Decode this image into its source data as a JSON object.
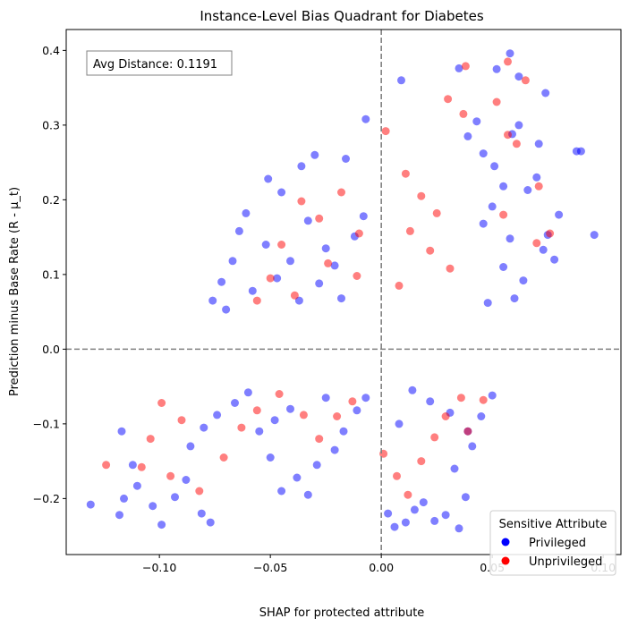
{
  "chart_data": {
    "type": "scatter",
    "title": "Instance-Level Bias Quadrant for Diabetes",
    "xlabel": "SHAP for protected attribute",
    "ylabel": "Prediction minus Base Rate (R - μ_t)",
    "xlim": [
      -0.142,
      0.108
    ],
    "ylim": [
      -0.275,
      0.428
    ],
    "xticks": [
      -0.1,
      -0.05,
      0.0,
      0.05,
      0.1
    ],
    "xtick_labels": [
      "−0.10",
      "−0.05",
      "0.00",
      "0.05",
      "0.10"
    ],
    "yticks": [
      -0.2,
      -0.1,
      0.0,
      0.1,
      0.2,
      0.3,
      0.4
    ],
    "ytick_labels": [
      "−0.2",
      "−0.1",
      "0.0",
      "0.1",
      "0.2",
      "0.3",
      "0.4"
    ],
    "reference_lines": {
      "x": 0.0,
      "y": 0.0,
      "style": "dashed",
      "color": "#808080"
    },
    "annotation": "Avg Distance: 0.1191",
    "grid": false,
    "legend": {
      "title": "Sensitive Attribute",
      "placement": "lower-right",
      "entries": [
        {
          "label": "Privileged",
          "color": "#0000ff"
        },
        {
          "label": "Unprivileged",
          "color": "#ff0000"
        }
      ]
    },
    "series": [
      {
        "name": "Privileged",
        "color": "#0000ff",
        "opacity": 0.5,
        "points": [
          [
            0.058,
            0.396
          ],
          [
            0.052,
            0.375
          ],
          [
            0.062,
            0.365
          ],
          [
            0.074,
            0.343
          ],
          [
            0.009,
            0.36
          ],
          [
            0.035,
            0.376
          ],
          [
            0.062,
            0.3
          ],
          [
            0.059,
            0.288
          ],
          [
            0.071,
            0.275
          ],
          [
            0.088,
            0.265
          ],
          [
            0.09,
            0.265
          ],
          [
            0.096,
            0.153
          ],
          [
            0.08,
            0.18
          ],
          [
            0.07,
            0.23
          ],
          [
            0.066,
            0.213
          ],
          [
            0.075,
            0.153
          ],
          [
            0.073,
            0.133
          ],
          [
            0.078,
            0.12
          ],
          [
            -0.076,
            0.065
          ],
          [
            -0.07,
            0.053
          ],
          [
            -0.067,
            0.118
          ],
          [
            -0.064,
            0.158
          ],
          [
            -0.061,
            0.182
          ],
          [
            -0.072,
            0.09
          ],
          [
            -0.045,
            0.21
          ],
          [
            -0.036,
            0.245
          ],
          [
            -0.03,
            0.26
          ],
          [
            -0.016,
            0.255
          ],
          [
            -0.007,
            0.308
          ],
          [
            -0.051,
            0.228
          ],
          [
            -0.033,
            0.172
          ],
          [
            -0.025,
            0.135
          ],
          [
            -0.052,
            0.14
          ],
          [
            -0.047,
            0.095
          ],
          [
            -0.041,
            0.118
          ],
          [
            -0.058,
            0.078
          ],
          [
            -0.021,
            0.112
          ],
          [
            -0.012,
            0.151
          ],
          [
            -0.008,
            0.178
          ],
          [
            -0.018,
            0.068
          ],
          [
            -0.028,
            0.088
          ],
          [
            -0.037,
            0.065
          ],
          [
            0.043,
            0.305
          ],
          [
            0.039,
            0.285
          ],
          [
            0.046,
            0.262
          ],
          [
            0.051,
            0.245
          ],
          [
            0.055,
            0.218
          ],
          [
            0.05,
            0.191
          ],
          [
            0.046,
            0.168
          ],
          [
            0.058,
            0.148
          ],
          [
            0.055,
            0.11
          ],
          [
            0.064,
            0.092
          ],
          [
            0.06,
            0.068
          ],
          [
            0.048,
            0.062
          ],
          [
            -0.131,
            -0.208
          ],
          [
            -0.118,
            -0.222
          ],
          [
            -0.116,
            -0.2
          ],
          [
            -0.11,
            -0.183
          ],
          [
            -0.117,
            -0.11
          ],
          [
            -0.112,
            -0.155
          ],
          [
            -0.103,
            -0.21
          ],
          [
            -0.099,
            -0.235
          ],
          [
            -0.093,
            -0.198
          ],
          [
            -0.088,
            -0.175
          ],
          [
            -0.081,
            -0.22
          ],
          [
            -0.077,
            -0.232
          ],
          [
            -0.086,
            -0.13
          ],
          [
            -0.08,
            -0.105
          ],
          [
            -0.074,
            -0.088
          ],
          [
            -0.066,
            -0.072
          ],
          [
            -0.06,
            -0.058
          ],
          [
            -0.055,
            -0.11
          ],
          [
            -0.05,
            -0.145
          ],
          [
            -0.045,
            -0.19
          ],
          [
            -0.038,
            -0.172
          ],
          [
            -0.033,
            -0.195
          ],
          [
            -0.029,
            -0.155
          ],
          [
            -0.021,
            -0.135
          ],
          [
            -0.017,
            -0.11
          ],
          [
            -0.011,
            -0.082
          ],
          [
            -0.007,
            -0.065
          ],
          [
            -0.025,
            -0.065
          ],
          [
            -0.041,
            -0.08
          ],
          [
            -0.048,
            -0.095
          ],
          [
            0.003,
            -0.22
          ],
          [
            0.006,
            -0.238
          ],
          [
            0.011,
            -0.232
          ],
          [
            0.015,
            -0.215
          ],
          [
            0.019,
            -0.205
          ],
          [
            0.024,
            -0.23
          ],
          [
            0.029,
            -0.222
          ],
          [
            0.035,
            -0.24
          ],
          [
            0.038,
            -0.198
          ],
          [
            0.033,
            -0.16
          ],
          [
            0.041,
            -0.13
          ],
          [
            0.05,
            -0.062
          ],
          [
            0.045,
            -0.09
          ],
          [
            0.039,
            -0.11
          ],
          [
            0.031,
            -0.085
          ],
          [
            0.022,
            -0.07
          ],
          [
            0.014,
            -0.055
          ],
          [
            0.008,
            -0.1
          ]
        ]
      },
      {
        "name": "Unprivileged",
        "color": "#ff0000",
        "opacity": 0.5,
        "points": [
          [
            0.038,
            0.379
          ],
          [
            0.057,
            0.385
          ],
          [
            0.065,
            0.36
          ],
          [
            0.052,
            0.331
          ],
          [
            0.03,
            0.335
          ],
          [
            0.037,
            0.315
          ],
          [
            0.057,
            0.287
          ],
          [
            0.061,
            0.275
          ],
          [
            0.071,
            0.218
          ],
          [
            0.076,
            0.155
          ],
          [
            0.07,
            0.142
          ],
          [
            0.055,
            0.18
          ],
          [
            -0.036,
            0.198
          ],
          [
            -0.028,
            0.175
          ],
          [
            -0.018,
            0.21
          ],
          [
            -0.01,
            0.155
          ],
          [
            -0.024,
            0.115
          ],
          [
            -0.045,
            0.14
          ],
          [
            -0.05,
            0.095
          ],
          [
            -0.056,
            0.065
          ],
          [
            -0.039,
            0.072
          ],
          [
            -0.011,
            0.098
          ],
          [
            0.002,
            0.292
          ],
          [
            0.011,
            0.235
          ],
          [
            0.018,
            0.205
          ],
          [
            0.025,
            0.182
          ],
          [
            0.013,
            0.158
          ],
          [
            0.022,
            0.132
          ],
          [
            0.031,
            0.108
          ],
          [
            0.008,
            0.085
          ],
          [
            -0.124,
            -0.155
          ],
          [
            -0.108,
            -0.158
          ],
          [
            -0.095,
            -0.17
          ],
          [
            -0.104,
            -0.12
          ],
          [
            -0.099,
            -0.072
          ],
          [
            -0.09,
            -0.095
          ],
          [
            -0.082,
            -0.19
          ],
          [
            -0.071,
            -0.145
          ],
          [
            -0.063,
            -0.105
          ],
          [
            -0.056,
            -0.082
          ],
          [
            -0.046,
            -0.06
          ],
          [
            -0.035,
            -0.088
          ],
          [
            -0.028,
            -0.12
          ],
          [
            -0.02,
            -0.09
          ],
          [
            -0.013,
            -0.07
          ],
          [
            0.001,
            -0.14
          ],
          [
            0.007,
            -0.17
          ],
          [
            0.012,
            -0.195
          ],
          [
            0.018,
            -0.15
          ],
          [
            0.024,
            -0.118
          ],
          [
            0.029,
            -0.09
          ],
          [
            0.036,
            -0.065
          ],
          [
            0.039,
            -0.11
          ],
          [
            0.046,
            -0.068
          ]
        ]
      }
    ]
  }
}
